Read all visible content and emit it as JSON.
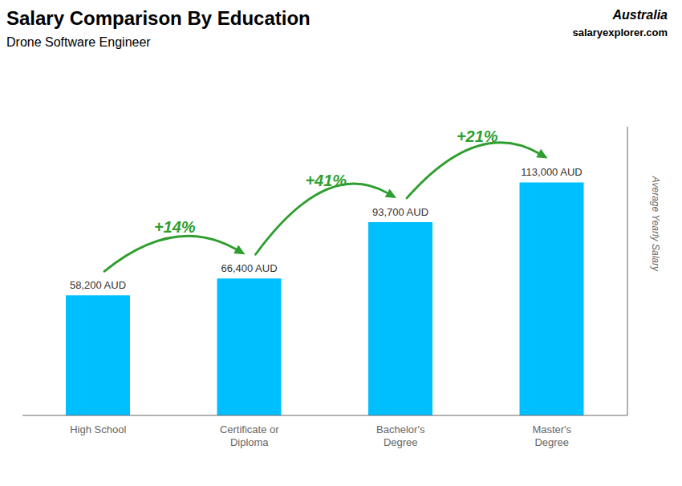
{
  "chart_data": {
    "type": "bar",
    "title": "Salary Comparison By Education",
    "subtitle": "Drone Software Engineer",
    "ylabel": "Average Yearly Salary",
    "categories": [
      "High School",
      "Certificate or\nDiploma",
      "Bachelor's\nDegree",
      "Master's\nDegree"
    ],
    "values": [
      58200,
      66400,
      93700,
      113000
    ],
    "value_labels": [
      "58,200 AUD",
      "66,400 AUD",
      "93,700 AUD",
      "113,000 AUD"
    ],
    "data_labels": true,
    "color": "#00BFFF",
    "ylim": [
      0,
      140000
    ],
    "grid": false,
    "tick_labels": "x",
    "annotations": [
      {
        "text": "Australia"
      },
      {
        "text": "salaryexplorer.com"
      },
      {
        "text": "+14%",
        "from": "High School",
        "to": "Certificate or\nDiploma",
        "color": "#2E9E2E"
      },
      {
        "text": "+41%",
        "from": "Certificate or\nDiploma",
        "to": "Bachelor's\nDegree",
        "color": "#2E9E2E"
      },
      {
        "text": "+21%",
        "from": "Bachelor's\nDegree",
        "to": "Master's\nDegree",
        "color": "#2E9E2E"
      }
    ]
  }
}
